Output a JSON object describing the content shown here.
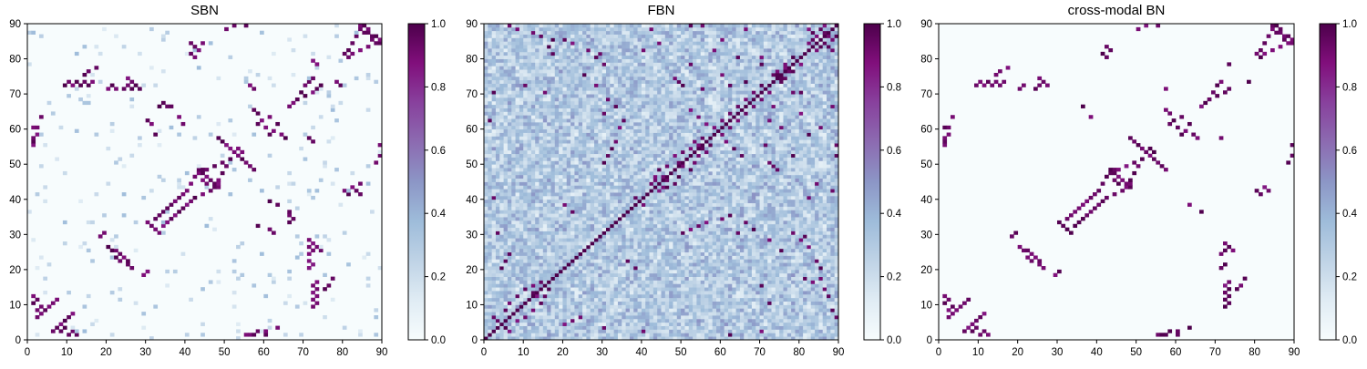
{
  "chart_data": [
    {
      "type": "heatmap",
      "title": "SBN",
      "xlabel": "",
      "ylabel": "",
      "xlim": [
        0,
        90
      ],
      "ylim": [
        0,
        90
      ],
      "xticks": [
        "0",
        "10",
        "20",
        "30",
        "40",
        "50",
        "60",
        "70",
        "80",
        "90"
      ],
      "yticks": [
        "0",
        "10",
        "20",
        "30",
        "40",
        "50",
        "60",
        "70",
        "80",
        "90"
      ],
      "colorbar": {
        "range": [
          0,
          1
        ],
        "ticks": [
          "0.0",
          "0.2",
          "0.4",
          "0.6",
          "0.8",
          "1.0"
        ]
      },
      "matrix_size": 90,
      "strong_edges": [
        [
          2,
          6
        ],
        [
          3,
          7
        ],
        [
          4,
          8
        ],
        [
          5,
          9
        ],
        [
          6,
          10
        ],
        [
          7,
          11
        ],
        [
          8,
          2
        ],
        [
          9,
          3
        ],
        [
          10,
          1
        ],
        [
          11,
          2
        ],
        [
          12,
          1
        ],
        [
          1,
          57
        ],
        [
          2,
          60
        ],
        [
          3,
          63
        ],
        [
          9,
          72
        ],
        [
          10,
          73
        ],
        [
          11,
          72
        ],
        [
          12,
          73
        ],
        [
          13,
          72
        ],
        [
          14,
          73
        ],
        [
          15,
          72
        ],
        [
          16,
          73
        ],
        [
          18,
          29
        ],
        [
          19,
          30
        ],
        [
          20,
          71
        ],
        [
          21,
          72
        ],
        [
          22,
          71
        ],
        [
          24,
          71
        ],
        [
          25,
          72
        ],
        [
          26,
          71
        ],
        [
          27,
          72
        ],
        [
          28,
          71
        ],
        [
          21,
          25
        ],
        [
          22,
          23
        ],
        [
          23,
          24
        ],
        [
          24,
          23
        ],
        [
          25,
          22
        ],
        [
          26,
          20
        ],
        [
          30,
          33
        ],
        [
          31,
          32
        ],
        [
          32,
          34
        ],
        [
          33,
          35
        ],
        [
          34,
          36
        ],
        [
          35,
          37
        ],
        [
          36,
          38
        ],
        [
          37,
          39
        ],
        [
          38,
          40
        ],
        [
          39,
          41
        ],
        [
          40,
          42
        ],
        [
          41,
          44
        ],
        [
          42,
          46
        ],
        [
          43,
          48
        ],
        [
          44,
          47
        ],
        [
          45,
          44
        ],
        [
          46,
          42
        ],
        [
          47,
          43
        ],
        [
          48,
          45
        ],
        [
          49,
          47
        ],
        [
          50,
          49
        ],
        [
          51,
          51
        ],
        [
          52,
          53
        ],
        [
          53,
          54
        ],
        [
          54,
          51
        ],
        [
          55,
          50
        ],
        [
          56,
          49
        ],
        [
          57,
          48
        ],
        [
          43,
          47
        ],
        [
          44,
          48
        ],
        [
          45,
          46
        ],
        [
          46,
          45
        ],
        [
          47,
          44
        ],
        [
          48,
          43
        ],
        [
          42,
          83
        ],
        [
          43,
          82
        ],
        [
          44,
          84
        ],
        [
          56,
          72
        ],
        [
          57,
          71
        ],
        [
          58,
          64
        ],
        [
          59,
          62
        ],
        [
          60,
          60
        ],
        [
          61,
          58
        ],
        [
          62,
          59
        ],
        [
          63,
          61
        ],
        [
          64,
          58
        ],
        [
          65,
          57
        ],
        [
          66,
          66
        ],
        [
          67,
          67
        ],
        [
          68,
          68
        ],
        [
          69,
          70
        ],
        [
          70,
          72
        ],
        [
          71,
          73
        ],
        [
          72,
          74
        ],
        [
          73,
          26
        ],
        [
          74,
          25
        ],
        [
          75,
          14
        ],
        [
          76,
          15
        ],
        [
          77,
          17
        ],
        [
          78,
          73
        ],
        [
          79,
          72
        ],
        [
          80,
          81
        ],
        [
          81,
          82
        ],
        [
          82,
          84
        ],
        [
          83,
          86
        ],
        [
          84,
          88
        ],
        [
          85,
          89
        ],
        [
          86,
          87
        ],
        [
          87,
          85
        ],
        [
          88,
          86
        ],
        [
          89,
          84
        ],
        [
          90,
          55
        ],
        [
          89,
          52
        ],
        [
          88,
          50
        ],
        [
          80,
          42
        ],
        [
          81,
          41
        ],
        [
          84,
          41
        ],
        [
          30,
          62
        ],
        [
          31,
          61
        ],
        [
          32,
          58
        ],
        [
          33,
          66
        ],
        [
          34,
          67
        ],
        [
          35,
          66
        ],
        [
          36,
          66
        ],
        [
          38,
          63
        ],
        [
          39,
          61
        ],
        [
          55,
          1
        ],
        [
          56,
          1
        ],
        [
          58,
          2
        ],
        [
          60,
          1
        ]
      ]
    },
    {
      "type": "heatmap",
      "title": "FBN",
      "xlabel": "",
      "ylabel": "",
      "xlim": [
        0,
        90
      ],
      "ylim": [
        0,
        90
      ],
      "xticks": [
        "0",
        "10",
        "20",
        "30",
        "40",
        "50",
        "60",
        "70",
        "80",
        "90"
      ],
      "yticks": [
        "0",
        "10",
        "20",
        "30",
        "40",
        "50",
        "60",
        "70",
        "80",
        "90"
      ],
      "colorbar": {
        "range": [
          0,
          1
        ],
        "ticks": [
          "0.0",
          "0.2",
          "0.4",
          "0.6",
          "0.8",
          "1.0"
        ]
      },
      "matrix_size": 90,
      "strong_edges": [
        [
          2,
          6
        ],
        [
          3,
          5
        ],
        [
          5,
          8
        ],
        [
          6,
          10
        ],
        [
          8,
          12
        ],
        [
          10,
          14
        ],
        [
          12,
          13
        ],
        [
          14,
          10
        ],
        [
          15,
          12
        ],
        [
          16,
          14
        ],
        [
          4,
          20
        ],
        [
          5,
          22
        ],
        [
          6,
          24
        ],
        [
          3,
          30
        ],
        [
          2,
          40
        ],
        [
          1,
          62
        ],
        [
          2,
          70
        ],
        [
          10,
          72
        ],
        [
          15,
          70
        ],
        [
          16,
          83
        ],
        [
          17,
          81
        ],
        [
          17,
          85
        ],
        [
          25,
          75
        ],
        [
          28,
          72
        ],
        [
          29,
          81
        ],
        [
          30,
          78
        ],
        [
          40,
          82
        ],
        [
          42,
          88
        ],
        [
          44,
          84
        ],
        [
          48,
          74
        ],
        [
          49,
          73
        ],
        [
          50,
          72
        ],
        [
          52,
          78
        ],
        [
          55,
          71
        ],
        [
          58,
          82
        ],
        [
          60,
          75
        ],
        [
          62,
          72
        ],
        [
          64,
          80
        ],
        [
          66,
          73
        ],
        [
          70,
          78
        ],
        [
          73,
          75
        ],
        [
          74,
          76
        ],
        [
          75,
          74
        ],
        [
          76,
          77
        ],
        [
          80,
          70
        ],
        [
          82,
          84
        ],
        [
          83,
          85
        ],
        [
          84,
          86
        ],
        [
          85,
          88
        ],
        [
          86,
          87
        ],
        [
          87,
          83
        ],
        [
          88,
          82
        ],
        [
          89,
          86
        ],
        [
          42,
          44
        ],
        [
          43,
          46
        ],
        [
          44,
          48
        ],
        [
          45,
          43
        ],
        [
          46,
          45
        ],
        [
          47,
          47
        ],
        [
          48,
          44
        ],
        [
          49,
          46
        ],
        [
          50,
          49
        ],
        [
          51,
          51
        ],
        [
          52,
          48
        ],
        [
          53,
          50
        ],
        [
          54,
          52
        ],
        [
          55,
          54
        ],
        [
          56,
          53
        ],
        [
          57,
          55
        ],
        [
          38,
          40
        ],
        [
          39,
          39
        ],
        [
          40,
          38
        ],
        [
          60,
          34
        ],
        [
          62,
          35
        ],
        [
          64,
          30
        ],
        [
          66,
          33
        ],
        [
          68,
          31
        ],
        [
          80,
          28
        ],
        [
          82,
          26
        ],
        [
          84,
          22
        ],
        [
          85,
          20
        ],
        [
          86,
          14
        ],
        [
          87,
          12
        ],
        [
          88,
          8
        ],
        [
          89,
          6
        ],
        [
          60,
          58
        ],
        [
          62,
          60
        ],
        [
          64,
          62
        ],
        [
          66,
          64
        ],
        [
          68,
          66
        ],
        [
          70,
          68
        ],
        [
          72,
          70
        ],
        [
          78,
          80
        ],
        [
          79,
          79
        ],
        [
          76,
          78
        ],
        [
          61,
          56
        ],
        [
          63,
          54
        ],
        [
          65,
          52
        ],
        [
          30,
          50
        ],
        [
          31,
          52
        ],
        [
          32,
          54
        ],
        [
          33,
          56
        ],
        [
          20,
          38
        ],
        [
          22,
          36
        ],
        [
          90,
          55
        ],
        [
          89,
          52
        ],
        [
          88,
          66
        ],
        [
          85,
          60
        ]
      ]
    },
    {
      "type": "heatmap",
      "title": "cross-modal BN",
      "xlabel": "",
      "ylabel": "",
      "xlim": [
        0,
        90
      ],
      "ylim": [
        0,
        90
      ],
      "xticks": [
        "0",
        "10",
        "20",
        "30",
        "40",
        "50",
        "60",
        "70",
        "80",
        "90"
      ],
      "yticks": [
        "0",
        "10",
        "20",
        "30",
        "40",
        "50",
        "60",
        "70",
        "80",
        "90"
      ],
      "colorbar": {
        "range": [
          0,
          1
        ],
        "ticks": [
          "0.0",
          "0.2",
          "0.4",
          "0.6",
          "0.8",
          "1.0"
        ]
      },
      "matrix_size": 90,
      "strong_edges": [
        [
          2,
          6
        ],
        [
          3,
          7
        ],
        [
          4,
          8
        ],
        [
          5,
          9
        ],
        [
          6,
          10
        ],
        [
          7,
          11
        ],
        [
          8,
          2
        ],
        [
          9,
          3
        ],
        [
          10,
          1
        ],
        [
          11,
          2
        ],
        [
          12,
          1
        ],
        [
          1,
          57
        ],
        [
          2,
          60
        ],
        [
          3,
          63
        ],
        [
          9,
          72
        ],
        [
          10,
          73
        ],
        [
          11,
          72
        ],
        [
          12,
          73
        ],
        [
          13,
          72
        ],
        [
          14,
          73
        ],
        [
          15,
          72
        ],
        [
          16,
          73
        ],
        [
          18,
          29
        ],
        [
          19,
          30
        ],
        [
          20,
          71
        ],
        [
          21,
          72
        ],
        [
          24,
          71
        ],
        [
          25,
          72
        ],
        [
          27,
          72
        ],
        [
          21,
          25
        ],
        [
          22,
          23
        ],
        [
          23,
          24
        ],
        [
          25,
          22
        ],
        [
          26,
          20
        ],
        [
          30,
          33
        ],
        [
          31,
          32
        ],
        [
          32,
          34
        ],
        [
          33,
          35
        ],
        [
          34,
          36
        ],
        [
          35,
          37
        ],
        [
          36,
          38
        ],
        [
          37,
          39
        ],
        [
          38,
          40
        ],
        [
          39,
          41
        ],
        [
          40,
          42
        ],
        [
          41,
          44
        ],
        [
          42,
          46
        ],
        [
          43,
          48
        ],
        [
          44,
          47
        ],
        [
          45,
          44
        ],
        [
          46,
          42
        ],
        [
          47,
          43
        ],
        [
          48,
          45
        ],
        [
          49,
          47
        ],
        [
          50,
          49
        ],
        [
          51,
          51
        ],
        [
          52,
          53
        ],
        [
          53,
          54
        ],
        [
          54,
          51
        ],
        [
          55,
          50
        ],
        [
          56,
          49
        ],
        [
          57,
          48
        ],
        [
          43,
          47
        ],
        [
          44,
          48
        ],
        [
          46,
          45
        ],
        [
          47,
          44
        ],
        [
          48,
          43
        ],
        [
          42,
          83
        ],
        [
          43,
          82
        ],
        [
          57,
          71
        ],
        [
          58,
          64
        ],
        [
          59,
          62
        ],
        [
          60,
          60
        ],
        [
          61,
          58
        ],
        [
          62,
          59
        ],
        [
          63,
          61
        ],
        [
          64,
          58
        ],
        [
          65,
          57
        ],
        [
          66,
          66
        ],
        [
          67,
          67
        ],
        [
          68,
          68
        ],
        [
          69,
          70
        ],
        [
          70,
          72
        ],
        [
          71,
          73
        ],
        [
          73,
          26
        ],
        [
          74,
          25
        ],
        [
          75,
          14
        ],
        [
          76,
          15
        ],
        [
          77,
          17
        ],
        [
          78,
          73
        ],
        [
          80,
          81
        ],
        [
          81,
          82
        ],
        [
          82,
          84
        ],
        [
          83,
          86
        ],
        [
          84,
          88
        ],
        [
          85,
          89
        ],
        [
          86,
          87
        ],
        [
          87,
          85
        ],
        [
          88,
          86
        ],
        [
          89,
          84
        ],
        [
          90,
          55
        ],
        [
          89,
          52
        ],
        [
          88,
          50
        ],
        [
          80,
          42
        ],
        [
          81,
          41
        ],
        [
          36,
          66
        ],
        [
          38,
          63
        ],
        [
          55,
          1
        ],
        [
          56,
          1
        ],
        [
          58,
          2
        ],
        [
          60,
          1
        ]
      ]
    }
  ]
}
